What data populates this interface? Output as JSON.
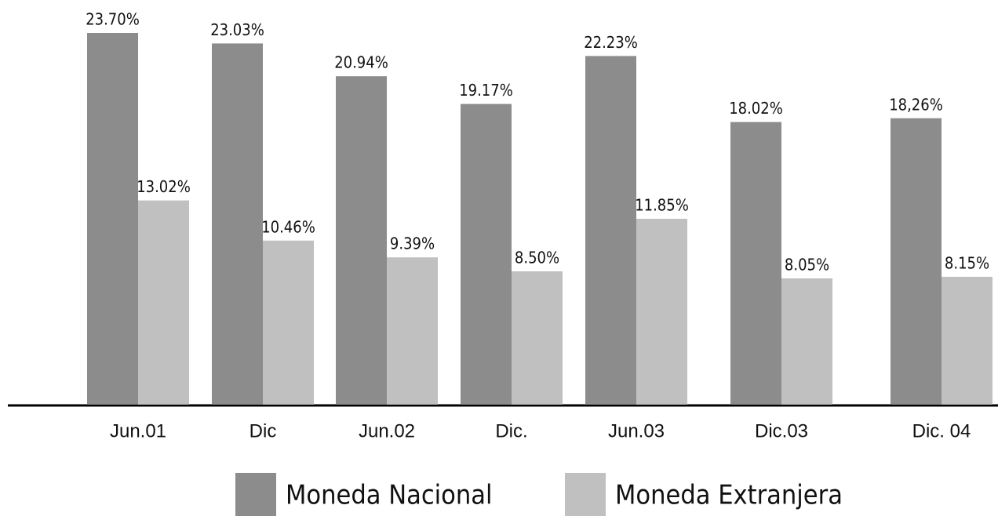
{
  "chart_data": {
    "type": "bar",
    "categories": [
      "Jun.01",
      "Dic",
      "Jun.02",
      "Dic.",
      "Jun.03",
      "Dic.03",
      "Dic. 04"
    ],
    "series": [
      {
        "name": "Moneda Nacional",
        "color": "#8c8c8c",
        "values": [
          23.7,
          23.03,
          20.94,
          19.17,
          22.23,
          18.02,
          18.26
        ],
        "value_labels": [
          "23.70%",
          "23.03%",
          "20.94%",
          "19.17%",
          "22.23%",
          "18.02%",
          "18,26%"
        ]
      },
      {
        "name": "Moneda Extranjera",
        "color": "#c0c0c0",
        "values": [
          13.02,
          10.46,
          9.39,
          8.5,
          11.85,
          8.05,
          8.15
        ],
        "value_labels": [
          "13.02%",
          "10.46%",
          "9.39%",
          "8.50%",
          "11.85%",
          "8.05%",
          "8.15%"
        ]
      }
    ]
  }
}
